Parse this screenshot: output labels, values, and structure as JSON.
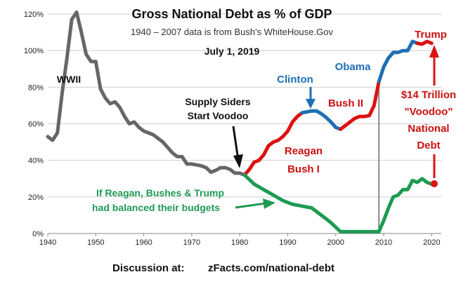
{
  "chart_data": {
    "type": "line",
    "title": "Gross National Debt  as % of GDP",
    "subtitle": "1940 – 2007 data is from Bush's WhiteHouse.Gov",
    "date": "July 1, 2019",
    "footer_prefix": "Discussion at:",
    "footer_link": "zFacts.com/national-debt",
    "xlim": [
      1940,
      2022
    ],
    "ylim": [
      0,
      120
    ],
    "grid": true,
    "x_ticks": [
      1940,
      1950,
      1960,
      1970,
      1980,
      1990,
      2000,
      2010,
      2020
    ],
    "x_tick_labels": [
      "1940",
      "1950",
      "1960",
      "1970",
      "1980",
      "1990",
      "2000",
      "2010",
      "2020"
    ],
    "y_ticks": [
      0,
      20,
      40,
      60,
      80,
      100,
      120
    ],
    "y_tick_labels": [
      "0%",
      "20%",
      "40%",
      "60%",
      "80%",
      "100%",
      "120%"
    ],
    "colors": {
      "gray": "#666666",
      "red": "#dd1111",
      "blue": "#1f6fb3",
      "green": "#1e9a52",
      "black": "#111111"
    },
    "series": [
      {
        "color": "gray",
        "points": [
          [
            1940,
            53
          ],
          [
            1941,
            51
          ],
          [
            1942,
            55
          ],
          [
            1943,
            77
          ],
          [
            1944,
            96
          ],
          [
            1945,
            117
          ],
          [
            1946,
            121
          ],
          [
            1947,
            110
          ],
          [
            1948,
            98
          ],
          [
            1949,
            94
          ],
          [
            1950,
            94
          ],
          [
            1951,
            79
          ],
          [
            1952,
            74
          ],
          [
            1953,
            71
          ],
          [
            1954,
            72
          ],
          [
            1955,
            69
          ],
          [
            1956,
            64
          ],
          [
            1957,
            60
          ],
          [
            1958,
            61
          ],
          [
            1959,
            58
          ],
          [
            1960,
            56
          ],
          [
            1961,
            55
          ],
          [
            1962,
            54
          ],
          [
            1963,
            52
          ],
          [
            1964,
            50
          ],
          [
            1965,
            47
          ],
          [
            1966,
            44
          ],
          [
            1967,
            42
          ],
          [
            1968,
            42
          ],
          [
            1969,
            38
          ],
          [
            1970,
            38
          ],
          [
            1971,
            37.5
          ],
          [
            1972,
            37
          ],
          [
            1973,
            36
          ],
          [
            1974,
            33.5
          ],
          [
            1975,
            34.5
          ],
          [
            1976,
            36
          ],
          [
            1977,
            36
          ],
          [
            1978,
            35
          ],
          [
            1979,
            33
          ],
          [
            1980,
            33
          ],
          [
            1981,
            32
          ]
        ]
      },
      {
        "color": "red",
        "points": [
          [
            1981,
            32
          ],
          [
            1982,
            35
          ],
          [
            1983,
            39
          ],
          [
            1984,
            40
          ],
          [
            1985,
            43
          ],
          [
            1986,
            48
          ],
          [
            1987,
            50
          ],
          [
            1988,
            51
          ],
          [
            1989,
            53
          ],
          [
            1990,
            56
          ],
          [
            1991,
            61
          ],
          [
            1992,
            64
          ],
          [
            1993,
            66
          ]
        ]
      },
      {
        "color": "blue",
        "points": [
          [
            1993,
            66
          ],
          [
            1994,
            66.5
          ],
          [
            1995,
            67
          ],
          [
            1996,
            67
          ],
          [
            1997,
            65.5
          ],
          [
            1998,
            63.5
          ],
          [
            1999,
            61
          ],
          [
            2000,
            58
          ],
          [
            2001,
            57
          ]
        ]
      },
      {
        "color": "red",
        "points": [
          [
            2001,
            57
          ],
          [
            2002,
            59
          ],
          [
            2003,
            61
          ],
          [
            2004,
            63
          ],
          [
            2005,
            64
          ],
          [
            2006,
            64
          ],
          [
            2007,
            64.5
          ],
          [
            2008,
            70
          ],
          [
            2009,
            83
          ]
        ]
      },
      {
        "color": "blue",
        "points": [
          [
            2009,
            83
          ],
          [
            2010,
            91
          ],
          [
            2011,
            96
          ],
          [
            2012,
            99
          ],
          [
            2013,
            99
          ],
          [
            2014,
            100
          ],
          [
            2015,
            100
          ],
          [
            2016,
            105
          ],
          [
            2017,
            104
          ]
        ]
      },
      {
        "color": "red",
        "points": [
          [
            2017,
            104
          ],
          [
            2018,
            103.5
          ],
          [
            2019,
            105
          ],
          [
            2020,
            104
          ]
        ]
      },
      {
        "color": "green",
        "points": [
          [
            1981,
            32
          ],
          [
            1983,
            27
          ],
          [
            1985,
            24
          ],
          [
            1987,
            21
          ],
          [
            1989,
            18
          ],
          [
            1991,
            16
          ],
          [
            1993,
            15
          ],
          [
            1995,
            14
          ],
          [
            1997,
            10
          ],
          [
            1999,
            6
          ],
          [
            2001,
            1
          ],
          [
            2003,
            1
          ],
          [
            2005,
            1
          ],
          [
            2007,
            1
          ],
          [
            2009,
            1
          ],
          [
            2010,
            7
          ],
          [
            2011,
            14
          ],
          [
            2012,
            20
          ],
          [
            2013,
            21
          ],
          [
            2014,
            24
          ],
          [
            2015,
            24
          ],
          [
            2016,
            29
          ],
          [
            2017,
            28
          ],
          [
            2018,
            30
          ],
          [
            2019,
            28
          ],
          [
            2020,
            27
          ]
        ]
      }
    ],
    "annotations": {
      "wwii": "WWII",
      "supply_1": "Supply Siders",
      "supply_2": "Start Voodoo",
      "clinton": "Clinton",
      "obama": "Obama",
      "bush2": "Bush II",
      "trump": "Trump",
      "reagan": "Reagan",
      "bush1": "Bush I",
      "trillion_1": "$14 Trillion",
      "trillion_2": "\"Voodoo\"",
      "trillion_3": "National",
      "trillion_4": "Debt",
      "green_1": "If Reagan, Bushes & Trump",
      "green_2": "had balanced their budgets"
    }
  }
}
